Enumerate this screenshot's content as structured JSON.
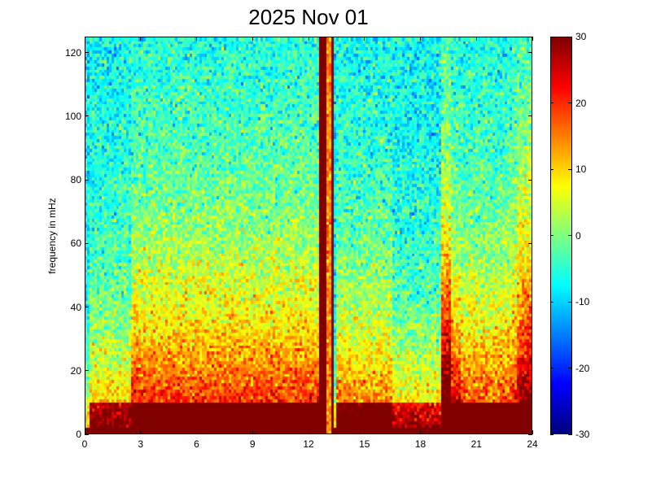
{
  "chart_data": {
    "type": "heatmap",
    "title": "2025 Nov 01",
    "ylabel": "frequency in mHz",
    "xlabel": "",
    "xlim": [
      0,
      24
    ],
    "ylim": [
      0,
      125
    ],
    "x_ticks": [
      "0",
      "3",
      "6",
      "9",
      "12",
      "15",
      "18",
      "21",
      "24"
    ],
    "y_ticks": [
      "0",
      "20",
      "40",
      "60",
      "80",
      "100",
      "120"
    ],
    "colorbar": {
      "range": [
        -30,
        30
      ],
      "ticks": [
        "30",
        "20",
        "10",
        "0",
        "-10",
        "-20",
        "-30"
      ],
      "colormap": "jet"
    },
    "features": [
      {
        "x_range": [
          12.7,
          13.4
        ],
        "level": 30,
        "note": "vertical saturated bands"
      },
      {
        "x_range": [
          19.2,
          19.6
        ],
        "level": 25,
        "note": "vertical bright burst"
      },
      {
        "y_range": [
          0,
          10
        ],
        "level": 30,
        "note": "strong low-frequency band"
      }
    ]
  }
}
